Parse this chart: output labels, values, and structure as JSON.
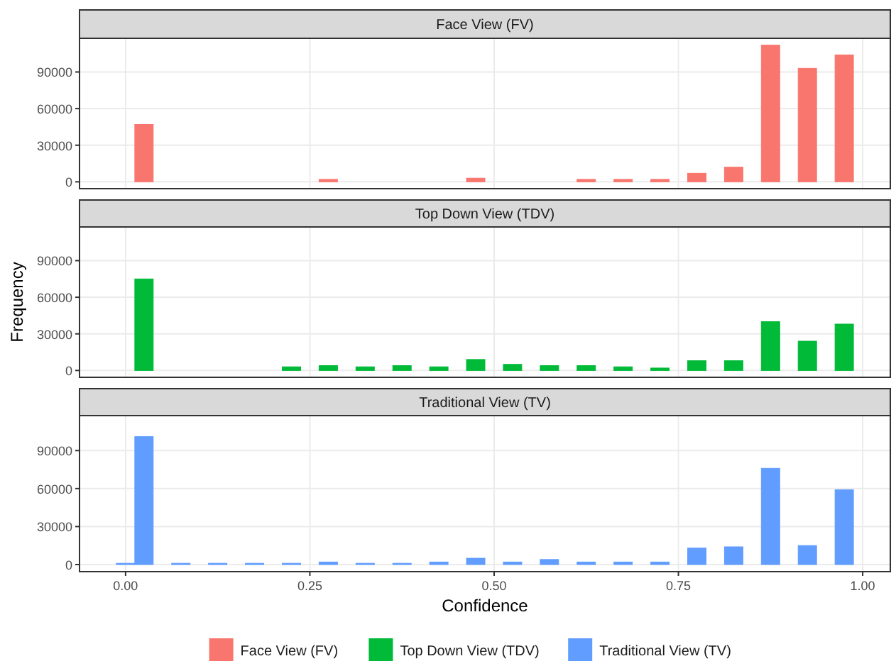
{
  "chart_data": [
    {
      "type": "histogram",
      "title": "Face View (FV)",
      "bins": [
        -0.0125,
        0.0125,
        0.0375,
        0.0625,
        0.0875,
        0.1125,
        0.1375,
        0.1625,
        0.1875,
        0.2125,
        0.2375,
        0.2625,
        0.2875,
        0.3125,
        0.3375,
        0.3625,
        0.3875,
        0.4125,
        0.4375,
        0.4625,
        0.4875,
        0.5125,
        0.5375,
        0.5625,
        0.5875,
        0.6125,
        0.6375,
        0.6625,
        0.6875,
        0.7125,
        0.7375,
        0.7625,
        0.7875,
        0.8125,
        0.8375,
        0.8625,
        0.8875,
        0.9125,
        0.9375,
        0.9625,
        0.9875
      ],
      "series": [
        {
          "name": "Face View (FV)",
          "color": "#f8766d",
          "values": [
            0,
            47000,
            0,
            0,
            0,
            0,
            0,
            0,
            0,
            0,
            0,
            2000,
            0,
            0,
            0,
            0,
            0,
            0,
            0,
            3000,
            0,
            0,
            0,
            0,
            0,
            2000,
            0,
            2000,
            0,
            2000,
            0,
            7000,
            0,
            12000,
            0,
            112000,
            0,
            93000,
            0,
            104000
          ]
        }
      ],
      "xlim": [
        -0.0625,
        1.0375
      ],
      "xticks": [
        0,
        0.25,
        0.5,
        0.75,
        1
      ],
      "ylim": [
        -5600,
        117600
      ],
      "yticks": [
        0,
        30000,
        60000,
        90000
      ],
      "grid": true,
      "tick_labels": "y",
      "legend": "bottom"
    },
    {
      "type": "histogram",
      "title": "Top Down View (TDV)",
      "ylabel": "Frequency",
      "bins": [
        -0.0125,
        0.0125,
        0.0375,
        0.0625,
        0.0875,
        0.1125,
        0.1375,
        0.1625,
        0.1875,
        0.2125,
        0.2375,
        0.2625,
        0.2875,
        0.3125,
        0.3375,
        0.3625,
        0.3875,
        0.4125,
        0.4375,
        0.4625,
        0.4875,
        0.5125,
        0.5375,
        0.5625,
        0.5875,
        0.6125,
        0.6375,
        0.6625,
        0.6875,
        0.7125,
        0.7375,
        0.7625,
        0.7875,
        0.8125,
        0.8375,
        0.8625,
        0.8875,
        0.9125,
        0.9375,
        0.9625,
        0.9875
      ],
      "series": [
        {
          "name": "Top Down View (TDV)",
          "color": "#00ba38",
          "values": [
            0,
            75000,
            0,
            0,
            0,
            0,
            0,
            0,
            0,
            3000,
            0,
            4000,
            0,
            3000,
            0,
            4000,
            0,
            3000,
            0,
            9000,
            0,
            5000,
            0,
            4000,
            0,
            4000,
            0,
            3000,
            0,
            2000,
            0,
            8000,
            0,
            8000,
            0,
            40000,
            0,
            24000,
            0,
            38000
          ]
        }
      ],
      "xlim": [
        -0.0625,
        1.0375
      ],
      "xticks": [
        0,
        0.25,
        0.5,
        0.75,
        1
      ],
      "ylim": [
        -5600,
        117600
      ],
      "yticks": [
        0,
        30000,
        60000,
        90000
      ],
      "grid": true,
      "tick_labels": "y",
      "legend": "bottom"
    },
    {
      "type": "histogram",
      "title": "Traditional View (TV)",
      "xlabel": "Confidence",
      "bins": [
        -0.0125,
        0.0125,
        0.0375,
        0.0625,
        0.0875,
        0.1125,
        0.1375,
        0.1625,
        0.1875,
        0.2125,
        0.2375,
        0.2625,
        0.2875,
        0.3125,
        0.3375,
        0.3625,
        0.3875,
        0.4125,
        0.4375,
        0.4625,
        0.4875,
        0.5125,
        0.5375,
        0.5625,
        0.5875,
        0.6125,
        0.6375,
        0.6625,
        0.6875,
        0.7125,
        0.7375,
        0.7625,
        0.7875,
        0.8125,
        0.8375,
        0.8625,
        0.8875,
        0.9125,
        0.9375,
        0.9625,
        0.9875
      ],
      "series": [
        {
          "name": "Traditional View (TV)",
          "color": "#619cff",
          "values": [
            1000,
            101000,
            0,
            1000,
            0,
            1000,
            0,
            1000,
            0,
            1000,
            0,
            2000,
            0,
            1000,
            0,
            1000,
            0,
            2000,
            0,
            5000,
            0,
            2000,
            0,
            4000,
            0,
            2000,
            0,
            2000,
            0,
            2000,
            0,
            13000,
            0,
            14000,
            0,
            76000,
            0,
            15000,
            0,
            59000
          ]
        }
      ],
      "xlim": [
        -0.0625,
        1.0375
      ],
      "xticks": [
        {
          "value": 0,
          "label": "0.00"
        },
        {
          "value": 0.25,
          "label": "0.25"
        },
        {
          "value": 0.5,
          "label": "0.50"
        },
        {
          "value": 0.75,
          "label": "0.75"
        },
        {
          "value": 1,
          "label": "1.00"
        }
      ],
      "ylim": [
        -5600,
        117600
      ],
      "yticks": [
        0,
        30000,
        60000,
        90000
      ],
      "grid": true,
      "legend": "bottom"
    }
  ]
}
